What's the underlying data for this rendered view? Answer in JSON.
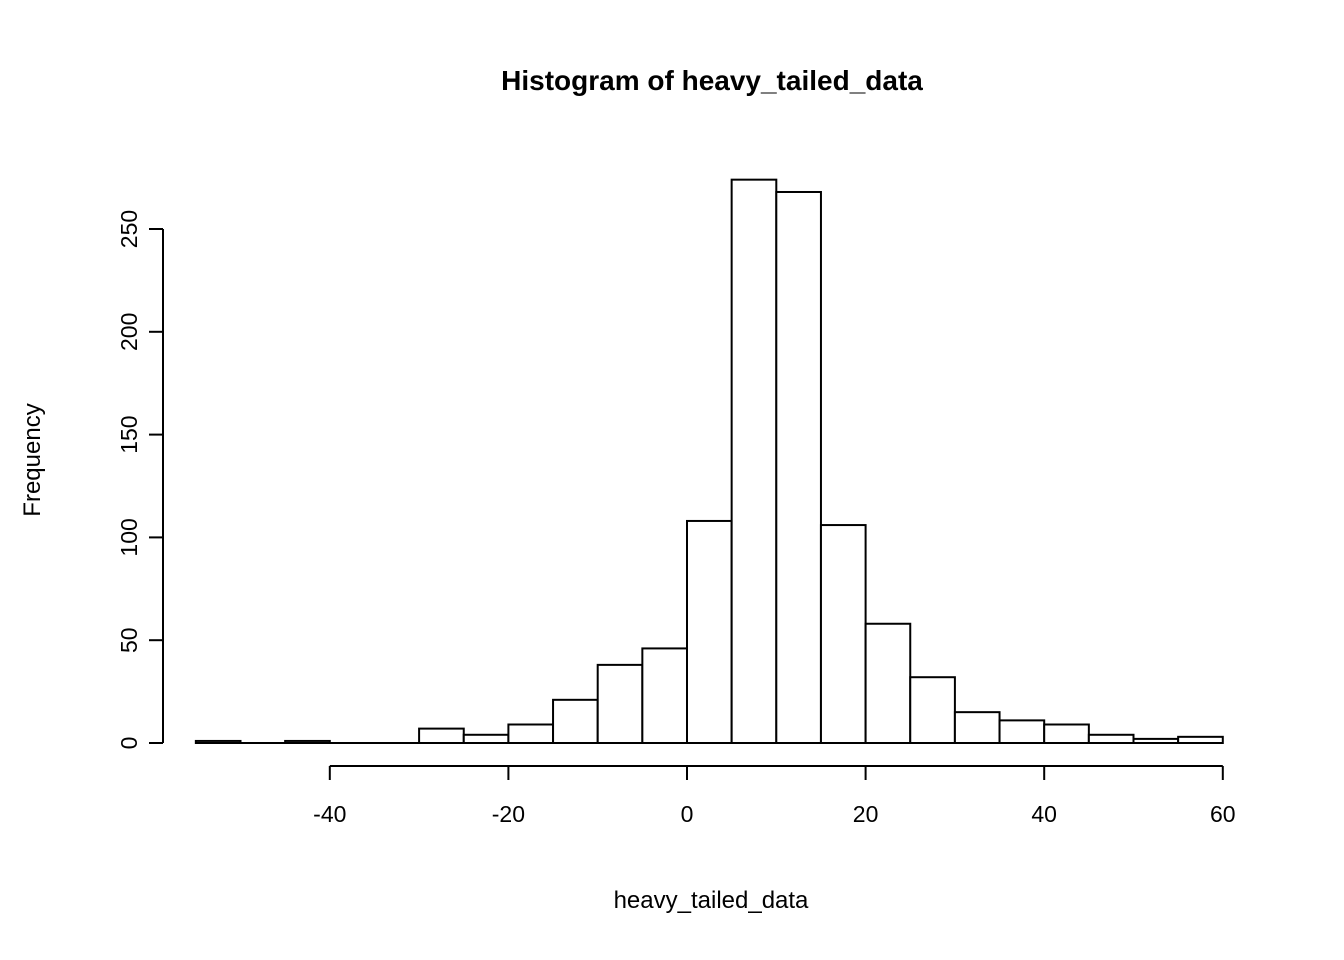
{
  "chart_data": {
    "type": "bar",
    "subtype": "histogram",
    "title": "Histogram of heavy_tailed_data",
    "xlabel": "heavy_tailed_data",
    "ylabel": "Frequency",
    "bin_edges": [
      -55,
      -50,
      -45,
      -40,
      -35,
      -30,
      -25,
      -20,
      -15,
      -10,
      -5,
      0,
      5,
      10,
      15,
      20,
      25,
      30,
      35,
      40,
      45,
      50,
      55,
      60
    ],
    "counts": [
      1,
      0,
      1,
      0,
      0,
      7,
      4,
      9,
      21,
      38,
      46,
      108,
      274,
      268,
      106,
      58,
      32,
      15,
      11,
      9,
      4,
      2,
      3
    ],
    "x_ticks": [
      -40,
      -20,
      0,
      20,
      40,
      60
    ],
    "x_tick_labels": [
      "-40",
      "-20",
      "0",
      "20",
      "40",
      "60"
    ],
    "y_ticks": [
      0,
      50,
      100,
      150,
      200,
      250
    ],
    "y_tick_labels": [
      "0",
      "50",
      "100",
      "150",
      "200",
      "250"
    ],
    "xlim": [
      -55,
      60
    ],
    "ylim": [
      0,
      275
    ],
    "grid": false,
    "legend": "none",
    "bar_fill": "#ffffff",
    "bar_stroke": "#000000",
    "axis_color": "#000000",
    "background_color": "#ffffff"
  }
}
